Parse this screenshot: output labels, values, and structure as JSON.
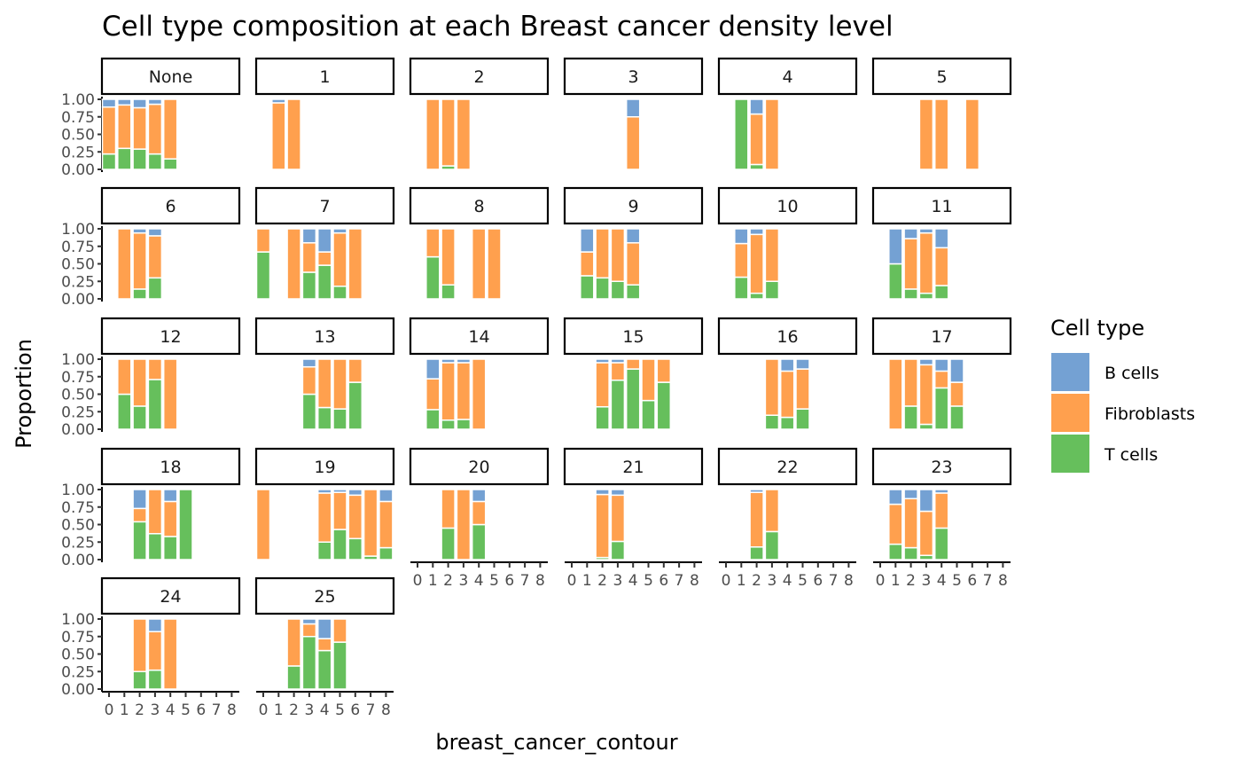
{
  "chart_data": {
    "type": "bar",
    "stacked": true,
    "title": "Cell type composition at each Breast cancer density level",
    "xlabel": "breast_cancer_contour",
    "ylabel": "Proportion",
    "x_ticks": [
      "0",
      "1",
      "2",
      "3",
      "4",
      "5",
      "6",
      "7",
      "8"
    ],
    "x_range": [
      0,
      8
    ],
    "y_ticks": [
      "0.00",
      "0.25",
      "0.50",
      "0.75",
      "1.00"
    ],
    "ylim": [
      0,
      1
    ],
    "legend": {
      "title": "Cell type",
      "position": "right",
      "items": [
        {
          "name": "B cells",
          "color": "#74A1D3"
        },
        {
          "name": "Fibroblasts",
          "color": "#FFA04E"
        },
        {
          "name": "T cells",
          "color": "#66BF5C"
        }
      ]
    },
    "stack_order_bottom_to_top": [
      "T cells",
      "Fibroblasts",
      "B cells"
    ],
    "panels": [
      {
        "label": "None",
        "bars": [
          {
            "x": 0,
            "T": 0.22,
            "F": 0.67,
            "B": 0.11
          },
          {
            "x": 1,
            "T": 0.3,
            "F": 0.62,
            "B": 0.08
          },
          {
            "x": 2,
            "T": 0.29,
            "F": 0.59,
            "B": 0.12
          },
          {
            "x": 3,
            "T": 0.22,
            "F": 0.71,
            "B": 0.07
          },
          {
            "x": 4,
            "T": 0.15,
            "F": 0.85,
            "B": 0.0
          }
        ]
      },
      {
        "label": "1",
        "bars": [
          {
            "x": 1,
            "T": 0.0,
            "F": 0.95,
            "B": 0.05
          },
          {
            "x": 2,
            "T": 0.0,
            "F": 1.0,
            "B": 0.0
          }
        ]
      },
      {
        "label": "2",
        "bars": [
          {
            "x": 1,
            "T": 0.0,
            "F": 1.0,
            "B": 0.0
          },
          {
            "x": 2,
            "T": 0.05,
            "F": 0.95,
            "B": 0.0
          },
          {
            "x": 3,
            "T": 0.0,
            "F": 1.0,
            "B": 0.0
          }
        ]
      },
      {
        "label": "3",
        "bars": [
          {
            "x": 4,
            "T": 0.0,
            "F": 0.75,
            "B": 0.25
          }
        ]
      },
      {
        "label": "4",
        "bars": [
          {
            "x": 1,
            "T": 1.0,
            "F": 0.0,
            "B": 0.0
          },
          {
            "x": 2,
            "T": 0.07,
            "F": 0.72,
            "B": 0.21
          },
          {
            "x": 3,
            "T": 0.0,
            "F": 1.0,
            "B": 0.0
          }
        ]
      },
      {
        "label": "5",
        "bars": [
          {
            "x": 3,
            "T": 0.0,
            "F": 1.0,
            "B": 0.0
          },
          {
            "x": 4,
            "T": 0.0,
            "F": 1.0,
            "B": 0.0
          },
          {
            "x": 6,
            "T": 0.0,
            "F": 1.0,
            "B": 0.0
          }
        ]
      },
      {
        "label": "6",
        "bars": [
          {
            "x": 1,
            "T": 0.0,
            "F": 1.0,
            "B": 0.0
          },
          {
            "x": 2,
            "T": 0.14,
            "F": 0.8,
            "B": 0.06
          },
          {
            "x": 3,
            "T": 0.3,
            "F": 0.6,
            "B": 0.1
          }
        ]
      },
      {
        "label": "7",
        "bars": [
          {
            "x": 0,
            "T": 0.67,
            "F": 0.33,
            "B": 0.0
          },
          {
            "x": 2,
            "T": 0.0,
            "F": 1.0,
            "B": 0.0
          },
          {
            "x": 3,
            "T": 0.38,
            "F": 0.42,
            "B": 0.2
          },
          {
            "x": 4,
            "T": 0.48,
            "F": 0.19,
            "B": 0.33
          },
          {
            "x": 5,
            "T": 0.18,
            "F": 0.76,
            "B": 0.06
          },
          {
            "x": 6,
            "T": 0.0,
            "F": 1.0,
            "B": 0.0
          }
        ]
      },
      {
        "label": "8",
        "bars": [
          {
            "x": 1,
            "T": 0.6,
            "F": 0.4,
            "B": 0.0
          },
          {
            "x": 2,
            "T": 0.2,
            "F": 0.8,
            "B": 0.0
          },
          {
            "x": 4,
            "T": 0.0,
            "F": 1.0,
            "B": 0.0
          },
          {
            "x": 5,
            "T": 0.0,
            "F": 1.0,
            "B": 0.0
          }
        ]
      },
      {
        "label": "9",
        "bars": [
          {
            "x": 1,
            "T": 0.33,
            "F": 0.34,
            "B": 0.33
          },
          {
            "x": 2,
            "T": 0.3,
            "F": 0.7,
            "B": 0.0
          },
          {
            "x": 3,
            "T": 0.25,
            "F": 0.75,
            "B": 0.0
          },
          {
            "x": 4,
            "T": 0.2,
            "F": 0.6,
            "B": 0.2
          }
        ]
      },
      {
        "label": "10",
        "bars": [
          {
            "x": 1,
            "T": 0.31,
            "F": 0.48,
            "B": 0.21
          },
          {
            "x": 2,
            "T": 0.08,
            "F": 0.84,
            "B": 0.08
          },
          {
            "x": 3,
            "T": 0.25,
            "F": 0.75,
            "B": 0.0
          }
        ]
      },
      {
        "label": "11",
        "bars": [
          {
            "x": 1,
            "T": 0.5,
            "F": 0.0,
            "B": 0.5
          },
          {
            "x": 2,
            "T": 0.14,
            "F": 0.72,
            "B": 0.14
          },
          {
            "x": 3,
            "T": 0.08,
            "F": 0.86,
            "B": 0.06
          },
          {
            "x": 4,
            "T": 0.19,
            "F": 0.54,
            "B": 0.27
          }
        ]
      },
      {
        "label": "12",
        "bars": [
          {
            "x": 1,
            "T": 0.5,
            "F": 0.5,
            "B": 0.0
          },
          {
            "x": 2,
            "T": 0.33,
            "F": 0.67,
            "B": 0.0
          },
          {
            "x": 3,
            "T": 0.71,
            "F": 0.29,
            "B": 0.0
          },
          {
            "x": 4,
            "T": 0.0,
            "F": 1.0,
            "B": 0.0
          }
        ]
      },
      {
        "label": "13",
        "bars": [
          {
            "x": 3,
            "T": 0.5,
            "F": 0.39,
            "B": 0.11
          },
          {
            "x": 4,
            "T": 0.31,
            "F": 0.69,
            "B": 0.0
          },
          {
            "x": 5,
            "T": 0.29,
            "F": 0.71,
            "B": 0.0
          },
          {
            "x": 6,
            "T": 0.67,
            "F": 0.33,
            "B": 0.0
          }
        ]
      },
      {
        "label": "14",
        "bars": [
          {
            "x": 1,
            "T": 0.28,
            "F": 0.44,
            "B": 0.28
          },
          {
            "x": 2,
            "T": 0.13,
            "F": 0.82,
            "B": 0.05
          },
          {
            "x": 3,
            "T": 0.14,
            "F": 0.81,
            "B": 0.05
          },
          {
            "x": 4,
            "T": 0.0,
            "F": 1.0,
            "B": 0.0
          }
        ]
      },
      {
        "label": "15",
        "bars": [
          {
            "x": 2,
            "T": 0.32,
            "F": 0.63,
            "B": 0.05
          },
          {
            "x": 3,
            "T": 0.7,
            "F": 0.25,
            "B": 0.05
          },
          {
            "x": 4,
            "T": 0.86,
            "F": 0.14,
            "B": 0.0
          },
          {
            "x": 5,
            "T": 0.41,
            "F": 0.59,
            "B": 0.0
          },
          {
            "x": 6,
            "T": 0.67,
            "F": 0.33,
            "B": 0.0
          }
        ]
      },
      {
        "label": "16",
        "bars": [
          {
            "x": 3,
            "T": 0.2,
            "F": 0.8,
            "B": 0.0
          },
          {
            "x": 4,
            "T": 0.17,
            "F": 0.66,
            "B": 0.17
          },
          {
            "x": 5,
            "T": 0.29,
            "F": 0.57,
            "B": 0.14
          }
        ]
      },
      {
        "label": "17",
        "bars": [
          {
            "x": 1,
            "T": 0.0,
            "F": 1.0,
            "B": 0.0
          },
          {
            "x": 2,
            "T": 0.33,
            "F": 0.67,
            "B": 0.0
          },
          {
            "x": 3,
            "T": 0.07,
            "F": 0.85,
            "B": 0.08
          },
          {
            "x": 4,
            "T": 0.59,
            "F": 0.24,
            "B": 0.17
          },
          {
            "x": 5,
            "T": 0.33,
            "F": 0.34,
            "B": 0.33
          }
        ]
      },
      {
        "label": "18",
        "bars": [
          {
            "x": 2,
            "T": 0.54,
            "F": 0.19,
            "B": 0.27
          },
          {
            "x": 3,
            "T": 0.37,
            "F": 0.63,
            "B": 0.0
          },
          {
            "x": 4,
            "T": 0.33,
            "F": 0.5,
            "B": 0.17
          },
          {
            "x": 5,
            "T": 1.0,
            "F": 0.0,
            "B": 0.0
          }
        ]
      },
      {
        "label": "19",
        "bars": [
          {
            "x": 0,
            "T": 0.0,
            "F": 1.0,
            "B": 0.0
          },
          {
            "x": 4,
            "T": 0.25,
            "F": 0.7,
            "B": 0.05
          },
          {
            "x": 5,
            "T": 0.43,
            "F": 0.53,
            "B": 0.04
          },
          {
            "x": 6,
            "T": 0.3,
            "F": 0.62,
            "B": 0.08
          },
          {
            "x": 7,
            "T": 0.05,
            "F": 0.95,
            "B": 0.0
          },
          {
            "x": 8,
            "T": 0.17,
            "F": 0.66,
            "B": 0.17
          }
        ]
      },
      {
        "label": "20",
        "bars": [
          {
            "x": 2,
            "T": 0.45,
            "F": 0.55,
            "B": 0.0
          },
          {
            "x": 3,
            "T": 0.0,
            "F": 1.0,
            "B": 0.0
          },
          {
            "x": 4,
            "T": 0.5,
            "F": 0.33,
            "B": 0.17
          }
        ]
      },
      {
        "label": "21",
        "bars": [
          {
            "x": 2,
            "T": 0.03,
            "F": 0.9,
            "B": 0.07
          },
          {
            "x": 3,
            "T": 0.26,
            "F": 0.66,
            "B": 0.08
          }
        ]
      },
      {
        "label": "22",
        "bars": [
          {
            "x": 2,
            "T": 0.18,
            "F": 0.78,
            "B": 0.04
          },
          {
            "x": 3,
            "T": 0.4,
            "F": 0.6,
            "B": 0.0
          }
        ]
      },
      {
        "label": "23",
        "bars": [
          {
            "x": 1,
            "T": 0.22,
            "F": 0.57,
            "B": 0.21
          },
          {
            "x": 2,
            "T": 0.17,
            "F": 0.7,
            "B": 0.13
          },
          {
            "x": 3,
            "T": 0.06,
            "F": 0.63,
            "B": 0.31
          },
          {
            "x": 4,
            "T": 0.45,
            "F": 0.5,
            "B": 0.05
          }
        ]
      },
      {
        "label": "24",
        "bars": [
          {
            "x": 2,
            "T": 0.25,
            "F": 0.75,
            "B": 0.0
          },
          {
            "x": 3,
            "T": 0.27,
            "F": 0.55,
            "B": 0.18
          },
          {
            "x": 4,
            "T": 0.0,
            "F": 1.0,
            "B": 0.0
          }
        ]
      },
      {
        "label": "25",
        "bars": [
          {
            "x": 2,
            "T": 0.33,
            "F": 0.67,
            "B": 0.0
          },
          {
            "x": 3,
            "T": 0.75,
            "F": 0.18,
            "B": 0.07
          },
          {
            "x": 4,
            "T": 0.55,
            "F": 0.17,
            "B": 0.28
          },
          {
            "x": 5,
            "T": 0.67,
            "F": 0.33,
            "B": 0.0
          }
        ]
      }
    ]
  }
}
